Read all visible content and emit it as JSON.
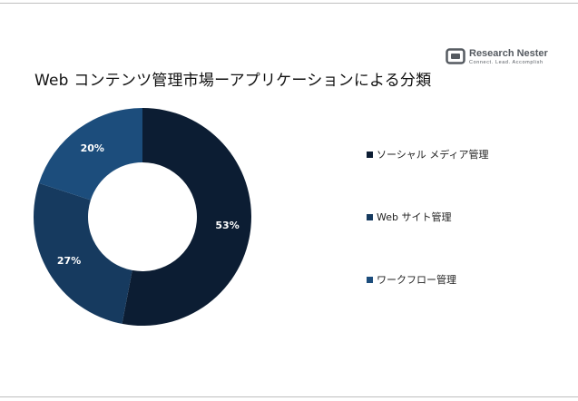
{
  "title": "Web コンテンツ管理市場ーアプリケーションによる分類",
  "logo": {
    "name": "Research Nester",
    "tagline": "Connect. Lead. Accomplish"
  },
  "chart_data": {
    "type": "pie",
    "donut": true,
    "categories": [
      "ソーシャル メディア管理",
      "Web サイト管理",
      "ワークフロー管理"
    ],
    "values": [
      53,
      27,
      20
    ],
    "value_labels": [
      "53%",
      "27%",
      "20%"
    ],
    "colors": [
      "#0c1d33",
      "#163a5f",
      "#1c4d7c"
    ],
    "legend_position": "right"
  }
}
